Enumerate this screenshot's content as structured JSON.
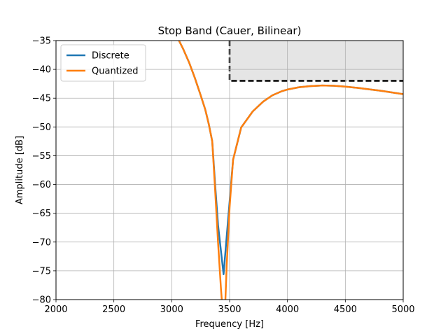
{
  "chart_data": {
    "type": "line",
    "title": "Stop Band (Cauer, Bilinear)",
    "xlabel": "Frequency [Hz]",
    "ylabel": "Amplitude [dB]",
    "xlim": [
      2000,
      5000
    ],
    "ylim": [
      -80,
      -35
    ],
    "xticks": [
      2000,
      2500,
      3000,
      3500,
      4000,
      4500,
      5000
    ],
    "yticks": [
      -35,
      -40,
      -45,
      -50,
      -55,
      -60,
      -65,
      -70,
      -75,
      -80
    ],
    "grid": true,
    "legend": "top-left",
    "series": [
      {
        "name": "Discrete",
        "color": "#1f77b4",
        "x": [
          3000,
          3050,
          3100,
          3150,
          3200,
          3250,
          3290,
          3320,
          3350,
          3375,
          3400,
          3425,
          3448,
          3475,
          3500,
          3530,
          3600,
          3700,
          3790,
          3870,
          3950,
          4000,
          4100,
          4200,
          4300,
          4400,
          4500,
          4600,
          4700,
          4800,
          4900,
          5000
        ],
        "y": [
          -32.0,
          -34.5,
          -36.5,
          -38.8,
          -41.5,
          -44.5,
          -47.0,
          -49.5,
          -52.5,
          -60.0,
          -67.0,
          -71.5,
          -75.6,
          -69.0,
          -63.0,
          -55.7,
          -50.1,
          -47.3,
          -45.6,
          -44.5,
          -43.8,
          -43.5,
          -43.1,
          -42.9,
          -42.8,
          -42.85,
          -43.0,
          -43.2,
          -43.45,
          -43.7,
          -44.0,
          -44.3
        ]
      },
      {
        "name": "Quantized",
        "color": "#ff7f0e",
        "x": [
          3000,
          3050,
          3100,
          3150,
          3200,
          3250,
          3290,
          3320,
          3350,
          3375,
          3400,
          3425,
          3440,
          3448,
          3460,
          3475,
          3500,
          3530,
          3600,
          3700,
          3790,
          3870,
          3950,
          4000,
          4100,
          4200,
          4300,
          4400,
          4500,
          4600,
          4700,
          4800,
          4900,
          5000
        ],
        "y": [
          -32.0,
          -34.5,
          -36.5,
          -38.8,
          -41.5,
          -44.5,
          -47.0,
          -49.5,
          -52.5,
          -61.0,
          -70.0,
          -78.0,
          -82.0,
          -83.0,
          -82.0,
          -74.0,
          -64.0,
          -55.7,
          -50.1,
          -47.3,
          -45.6,
          -44.5,
          -43.8,
          -43.5,
          -43.1,
          -42.9,
          -42.8,
          -42.85,
          -43.0,
          -43.2,
          -43.45,
          -43.7,
          -44.0,
          -44.3
        ]
      }
    ],
    "spec_region": {
      "x_start": 3500,
      "x_end": 5000,
      "y_limit": -42,
      "fill": "#e5e5e5"
    }
  }
}
